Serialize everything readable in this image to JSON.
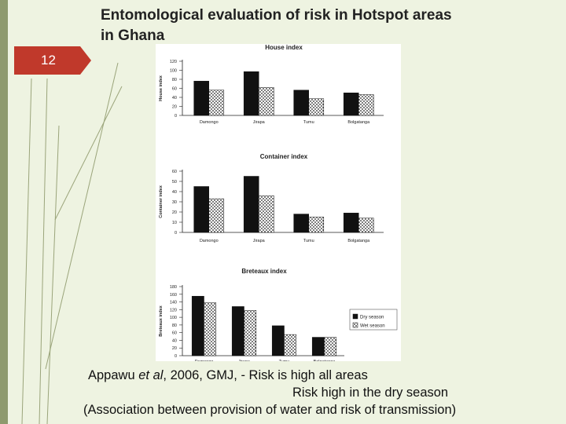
{
  "slide": {
    "number": "12",
    "title_line1": "Entomological evaluation of risk in Hotspot areas",
    "title_line2": "in Ghana"
  },
  "caption": {
    "author": "Appawu",
    "etal": "et al",
    "citation": ", 2006, GMJ, -   Risk is high all areas",
    "line2": "Risk high in the dry season",
    "line3": "(Association between provision of water and risk of transmission)"
  },
  "colors": {
    "dry": "#111111",
    "wet": "#ffffff",
    "accent": "#c0392b",
    "bar_side": "#8e9a6e"
  },
  "chart_data": [
    {
      "type": "bar",
      "title": "House index",
      "ylabel": "House index",
      "categories": [
        "Damongo",
        "Jirapa",
        "Tumu",
        "Bolgatanga"
      ],
      "yticks": [
        0,
        20,
        40,
        60,
        80,
        100,
        120
      ],
      "ylim": [
        0,
        120
      ],
      "series": [
        {
          "name": "Dry season",
          "values": [
            76,
            97,
            56,
            50
          ]
        },
        {
          "name": "Wet season",
          "values": [
            56,
            62,
            37,
            46
          ]
        }
      ]
    },
    {
      "type": "bar",
      "title": "Container index",
      "ylabel": "Container index",
      "categories": [
        "Damongo",
        "Jirapa",
        "Tumu",
        "Bolgatanga"
      ],
      "yticks": [
        0,
        10,
        20,
        30,
        40,
        50,
        60
      ],
      "ylim": [
        0,
        60
      ],
      "series": [
        {
          "name": "Dry season",
          "values": [
            45,
            55,
            18,
            19
          ]
        },
        {
          "name": "Wet season",
          "values": [
            33,
            36,
            15,
            14
          ]
        }
      ]
    },
    {
      "type": "bar",
      "title": "Breteaux index",
      "ylabel": "Breteaux index",
      "categories": [
        "Damongo",
        "Jirapa",
        "Tumu",
        "Bolgatanga"
      ],
      "yticks": [
        0,
        20,
        40,
        60,
        80,
        100,
        120,
        140,
        160,
        180
      ],
      "ylim": [
        0,
        180
      ],
      "legend": [
        "Dry season",
        "Wet season"
      ],
      "series": [
        {
          "name": "Dry season",
          "values": [
            155,
            128,
            78,
            48
          ]
        },
        {
          "name": "Wet season",
          "values": [
            138,
            118,
            55,
            48
          ]
        }
      ]
    }
  ]
}
